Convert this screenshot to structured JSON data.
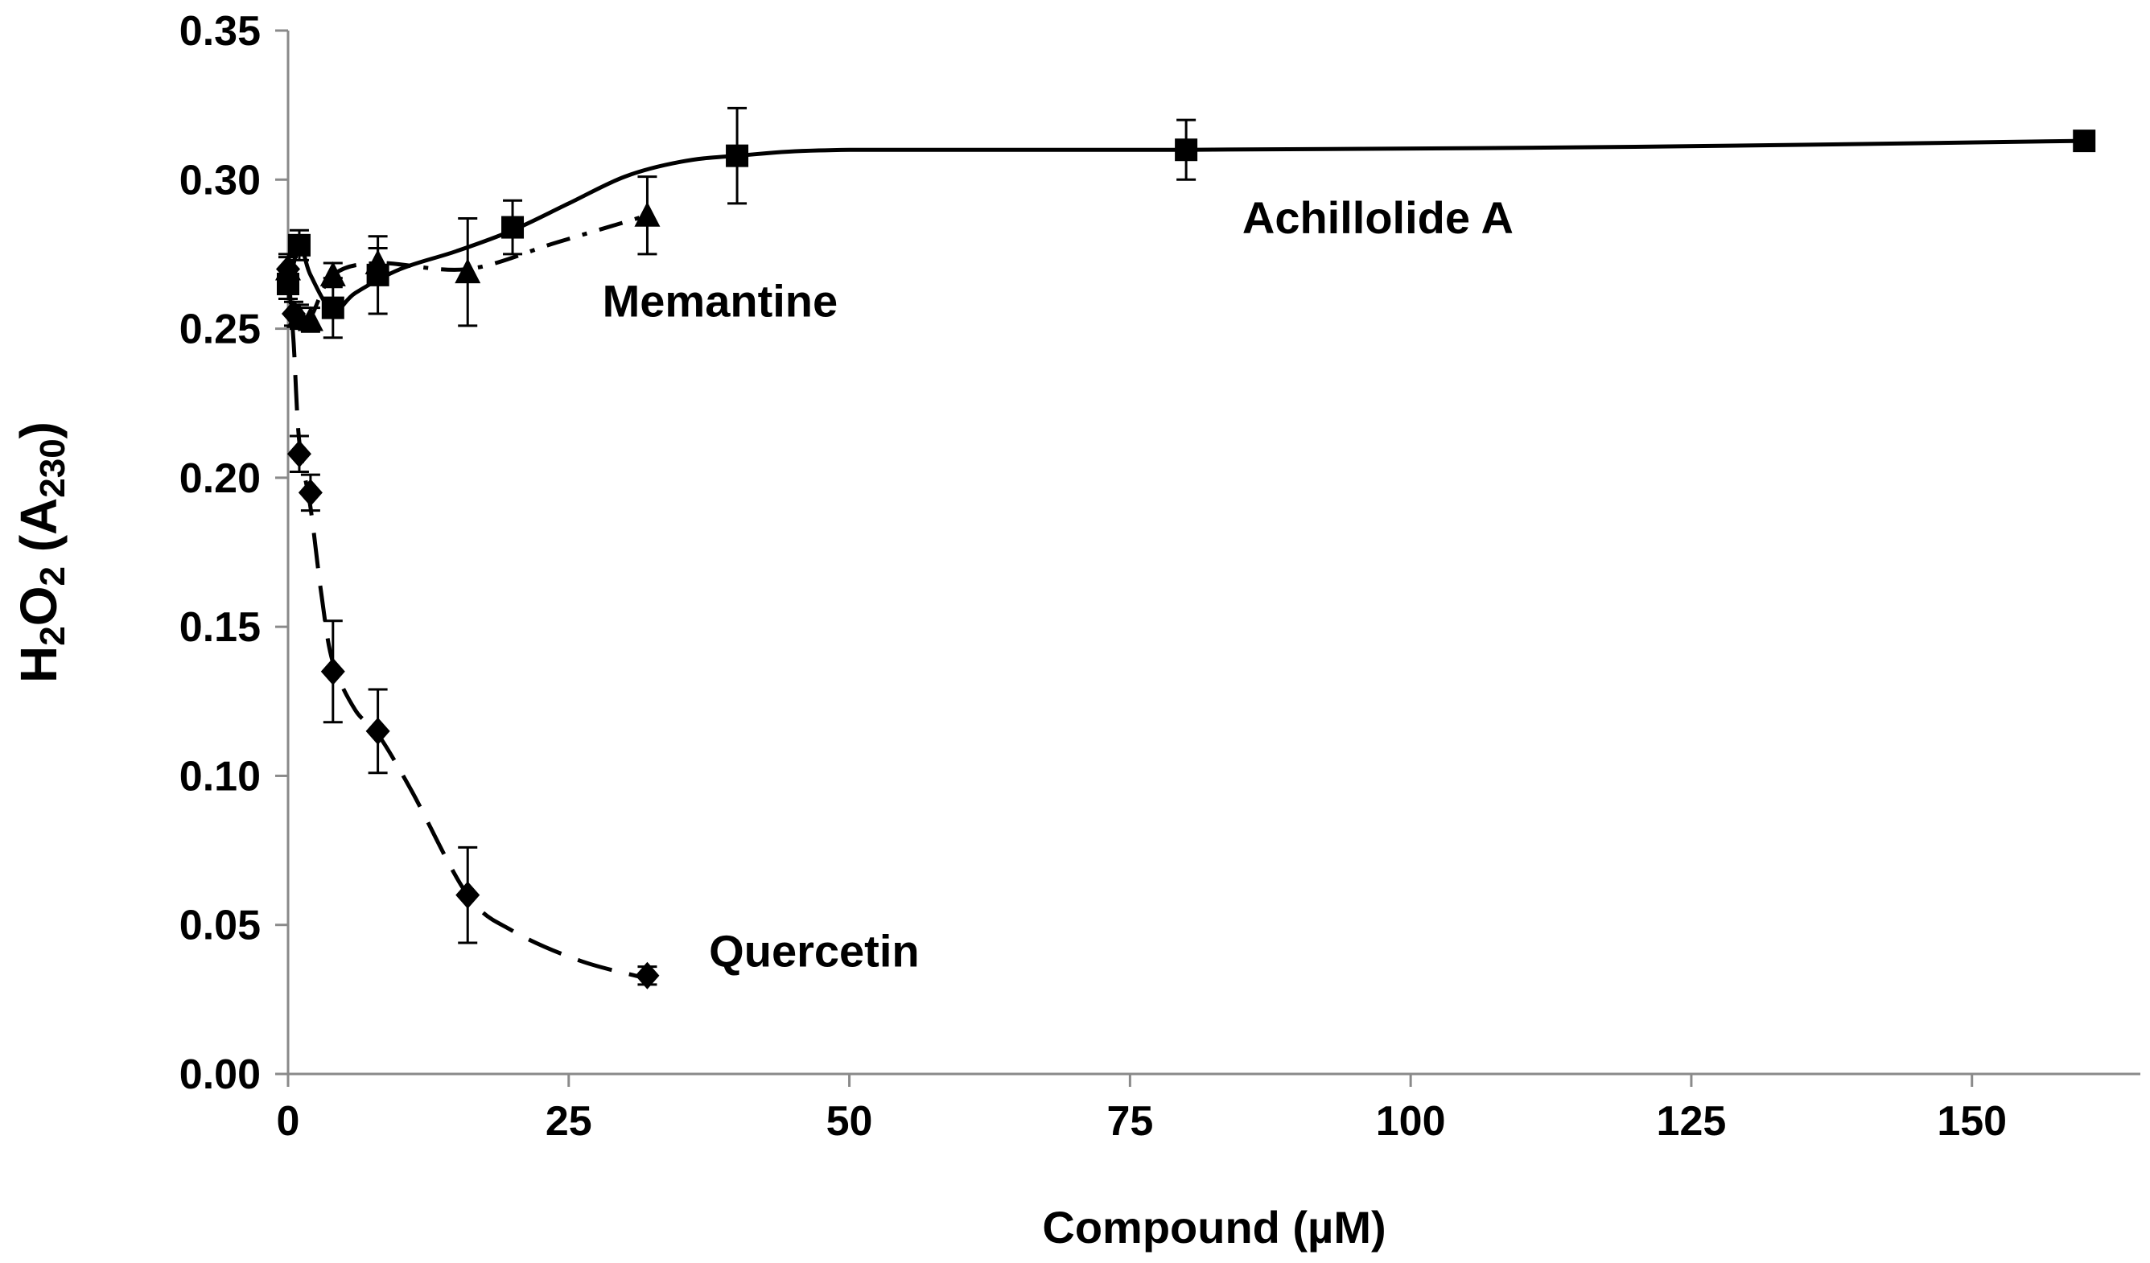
{
  "chart_data": {
    "type": "line",
    "title": "",
    "xlabel": "Compound (µM)",
    "ylabel": {
      "main": "H",
      "sub1": "2",
      "mid": "O",
      "sub2": "2",
      "open": " (A",
      "sub3": "230",
      "close": ")"
    },
    "xlim": [
      0,
      165
    ],
    "ylim": [
      0,
      0.35
    ],
    "xticks": [
      0,
      25,
      50,
      75,
      100,
      125,
      150
    ],
    "yticks": [
      0,
      0.05,
      0.1,
      0.15,
      0.2,
      0.25,
      0.3,
      0.35
    ],
    "xtick_labels": [
      "0",
      "25",
      "50",
      "75",
      "100",
      "125",
      "150"
    ],
    "ytick_labels": [
      "0.00",
      "0.05",
      "0.10",
      "0.15",
      "0.20",
      "0.25",
      "0.30",
      "0.35"
    ],
    "grid": false,
    "series": [
      {
        "name": "Achillolide A",
        "marker": "square",
        "line_style": "solid",
        "color": "#000000",
        "points": [
          {
            "x": 0,
            "y": 0.265,
            "err": 0.005
          },
          {
            "x": 1,
            "y": 0.278,
            "err": 0.005
          },
          {
            "x": 4,
            "y": 0.257,
            "err": 0.01
          },
          {
            "x": 8,
            "y": 0.268,
            "err": 0.013
          },
          {
            "x": 20,
            "y": 0.284,
            "err": 0.009
          },
          {
            "x": 40,
            "y": 0.308,
            "err": 0.016
          },
          {
            "x": 80,
            "y": 0.31,
            "err": 0.01
          },
          {
            "x": 160,
            "y": 0.313,
            "err": 0.003
          }
        ],
        "curve": [
          [
            0,
            0.262
          ],
          [
            1,
            0.278
          ],
          [
            2,
            0.268
          ],
          [
            4,
            0.256
          ],
          [
            6,
            0.262
          ],
          [
            10,
            0.27
          ],
          [
            15,
            0.276
          ],
          [
            20,
            0.283
          ],
          [
            25,
            0.292
          ],
          [
            30,
            0.301
          ],
          [
            35,
            0.306
          ],
          [
            40,
            0.308
          ],
          [
            50,
            0.31
          ],
          [
            80,
            0.31
          ],
          [
            120,
            0.311
          ],
          [
            160,
            0.313
          ]
        ]
      },
      {
        "name": "Memantine",
        "marker": "triangle",
        "line_style": "dash-dot",
        "color": "#000000",
        "points": [
          {
            "x": 0,
            "y": 0.27,
            "err": 0.004
          },
          {
            "x": 1,
            "y": 0.254,
            "err": 0.004
          },
          {
            "x": 2,
            "y": 0.253,
            "err": 0.004
          },
          {
            "x": 4,
            "y": 0.268,
            "err": 0.004
          },
          {
            "x": 8,
            "y": 0.272,
            "err": 0.005
          },
          {
            "x": 16,
            "y": 0.269,
            "err": 0.018
          },
          {
            "x": 32,
            "y": 0.288,
            "err": 0.013
          }
        ],
        "curve": [
          [
            0,
            0.27
          ],
          [
            1,
            0.256
          ],
          [
            2,
            0.254
          ],
          [
            4,
            0.268
          ],
          [
            8,
            0.272
          ],
          [
            16,
            0.27
          ],
          [
            24,
            0.279
          ],
          [
            32,
            0.288
          ]
        ]
      },
      {
        "name": "Quercetin",
        "marker": "diamond",
        "line_style": "dashed",
        "color": "#000000",
        "points": [
          {
            "x": 0,
            "y": 0.27,
            "err": 0.005
          },
          {
            "x": 0.5,
            "y": 0.255,
            "err": 0.004
          },
          {
            "x": 1,
            "y": 0.208,
            "err": 0.006
          },
          {
            "x": 2,
            "y": 0.195,
            "err": 0.006
          },
          {
            "x": 4,
            "y": 0.135,
            "err": 0.017
          },
          {
            "x": 8,
            "y": 0.115,
            "err": 0.014
          },
          {
            "x": 16,
            "y": 0.06,
            "err": 0.016
          },
          {
            "x": 32,
            "y": 0.033,
            "err": 0.003
          }
        ],
        "curve": [
          [
            0,
            0.27
          ],
          [
            0.5,
            0.245
          ],
          [
            1,
            0.212
          ],
          [
            2,
            0.19
          ],
          [
            3,
            0.16
          ],
          [
            4,
            0.138
          ],
          [
            6,
            0.122
          ],
          [
            8,
            0.114
          ],
          [
            11,
            0.095
          ],
          [
            16,
            0.06
          ],
          [
            20,
            0.048
          ],
          [
            26,
            0.038
          ],
          [
            32,
            0.032
          ]
        ]
      }
    ],
    "annotations": [
      {
        "text": "Achillolide A",
        "x": 85,
        "y": 0.282
      },
      {
        "text": "Memantine",
        "x": 28,
        "y": 0.254
      },
      {
        "text": "Quercetin",
        "x": 37.5,
        "y": 0.036
      }
    ]
  }
}
